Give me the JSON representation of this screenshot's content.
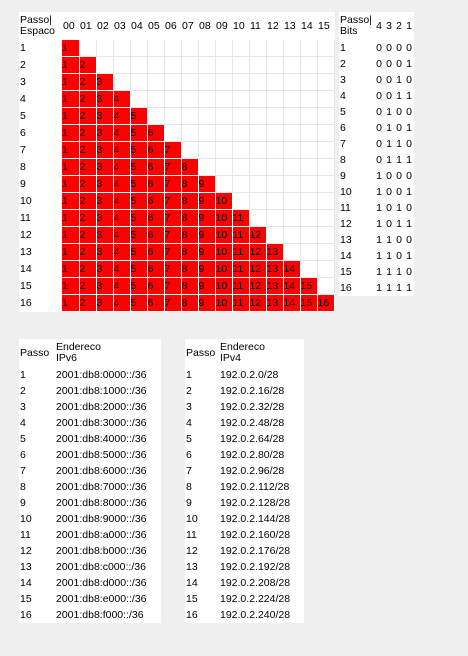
{
  "grid": {
    "header_label": [
      "Passo|",
      "Espaco"
    ],
    "columns": [
      "00",
      "01",
      "02",
      "03",
      "04",
      "05",
      "06",
      "07",
      "08",
      "09",
      "10",
      "11",
      "12",
      "13",
      "14",
      "15"
    ],
    "rows": [
      "1",
      "2",
      "3",
      "4",
      "5",
      "6",
      "7",
      "8",
      "9",
      "10",
      "11",
      "12",
      "13",
      "14",
      "15",
      "16"
    ],
    "fill_color": "#ff0000"
  },
  "bits": {
    "header_label": [
      "Passo|",
      "Bits"
    ],
    "columns": [
      "4",
      "3",
      "2",
      "1"
    ],
    "rows": [
      {
        "passo": "1",
        "bits": [
          "0",
          "0",
          "0",
          "0"
        ]
      },
      {
        "passo": "2",
        "bits": [
          "0",
          "0",
          "0",
          "1"
        ]
      },
      {
        "passo": "3",
        "bits": [
          "0",
          "0",
          "1",
          "0"
        ]
      },
      {
        "passo": "4",
        "bits": [
          "0",
          "0",
          "1",
          "1"
        ]
      },
      {
        "passo": "5",
        "bits": [
          "0",
          "1",
          "0",
          "0"
        ]
      },
      {
        "passo": "6",
        "bits": [
          "0",
          "1",
          "0",
          "1"
        ]
      },
      {
        "passo": "7",
        "bits": [
          "0",
          "1",
          "1",
          "0"
        ]
      },
      {
        "passo": "8",
        "bits": [
          "0",
          "1",
          "1",
          "1"
        ]
      },
      {
        "passo": "9",
        "bits": [
          "1",
          "0",
          "0",
          "0"
        ]
      },
      {
        "passo": "10",
        "bits": [
          "1",
          "0",
          "0",
          "1"
        ]
      },
      {
        "passo": "11",
        "bits": [
          "1",
          "0",
          "1",
          "0"
        ]
      },
      {
        "passo": "12",
        "bits": [
          "1",
          "0",
          "1",
          "1"
        ]
      },
      {
        "passo": "13",
        "bits": [
          "1",
          "1",
          "0",
          "0"
        ]
      },
      {
        "passo": "14",
        "bits": [
          "1",
          "1",
          "0",
          "1"
        ]
      },
      {
        "passo": "15",
        "bits": [
          "1",
          "1",
          "1",
          "0"
        ]
      },
      {
        "passo": "16",
        "bits": [
          "1",
          "1",
          "1",
          "1"
        ]
      }
    ]
  },
  "ipv6": {
    "header_passo": "Passo",
    "header_addr": [
      "Endereco",
      "IPv6"
    ],
    "rows": [
      {
        "passo": "1",
        "addr": "2001:db8:0000::/36"
      },
      {
        "passo": "2",
        "addr": "2001:db8:1000::/36"
      },
      {
        "passo": "3",
        "addr": "2001:db8:2000::/36"
      },
      {
        "passo": "4",
        "addr": "2001:db8:3000::/36"
      },
      {
        "passo": "5",
        "addr": "2001:db8:4000::/36"
      },
      {
        "passo": "6",
        "addr": "2001:db8:5000::/36"
      },
      {
        "passo": "7",
        "addr": "2001:db8:6000::/36"
      },
      {
        "passo": "8",
        "addr": "2001:db8:7000::/36"
      },
      {
        "passo": "9",
        "addr": "2001:db8:8000::/36"
      },
      {
        "passo": "10",
        "addr": "2001:db8:9000::/36"
      },
      {
        "passo": "11",
        "addr": "2001:db8:a000::/36"
      },
      {
        "passo": "12",
        "addr": "2001:db8:b000::/36"
      },
      {
        "passo": "13",
        "addr": "2001:db8:c000::/36"
      },
      {
        "passo": "14",
        "addr": "2001:db8:d000::/36"
      },
      {
        "passo": "15",
        "addr": "2001:db8:e000::/36"
      },
      {
        "passo": "16",
        "addr": "2001:db8:f000::/36"
      }
    ]
  },
  "ipv4": {
    "header_passo": "Passo",
    "header_addr": [
      "Endereco",
      "IPv4"
    ],
    "rows": [
      {
        "passo": "1",
        "addr": "192.0.2.0/28"
      },
      {
        "passo": "2",
        "addr": "192.0.2.16/28"
      },
      {
        "passo": "3",
        "addr": "192.0.2.32/28"
      },
      {
        "passo": "4",
        "addr": "192.0.2.48/28"
      },
      {
        "passo": "5",
        "addr": "192.0.2.64/28"
      },
      {
        "passo": "6",
        "addr": "192.0.2.80/28"
      },
      {
        "passo": "7",
        "addr": "192.0.2.96/28"
      },
      {
        "passo": "8",
        "addr": "192.0.2.112/28"
      },
      {
        "passo": "9",
        "addr": "192.0.2.128/28"
      },
      {
        "passo": "10",
        "addr": "192.0.2.144/28"
      },
      {
        "passo": "11",
        "addr": "192.0.2.160/28"
      },
      {
        "passo": "12",
        "addr": "192.0.2.176/28"
      },
      {
        "passo": "13",
        "addr": "192.0.2.192/28"
      },
      {
        "passo": "14",
        "addr": "192.0.2.208/28"
      },
      {
        "passo": "15",
        "addr": "192.0.2.224/28"
      },
      {
        "passo": "16",
        "addr": "192.0.2.240/28"
      }
    ]
  }
}
